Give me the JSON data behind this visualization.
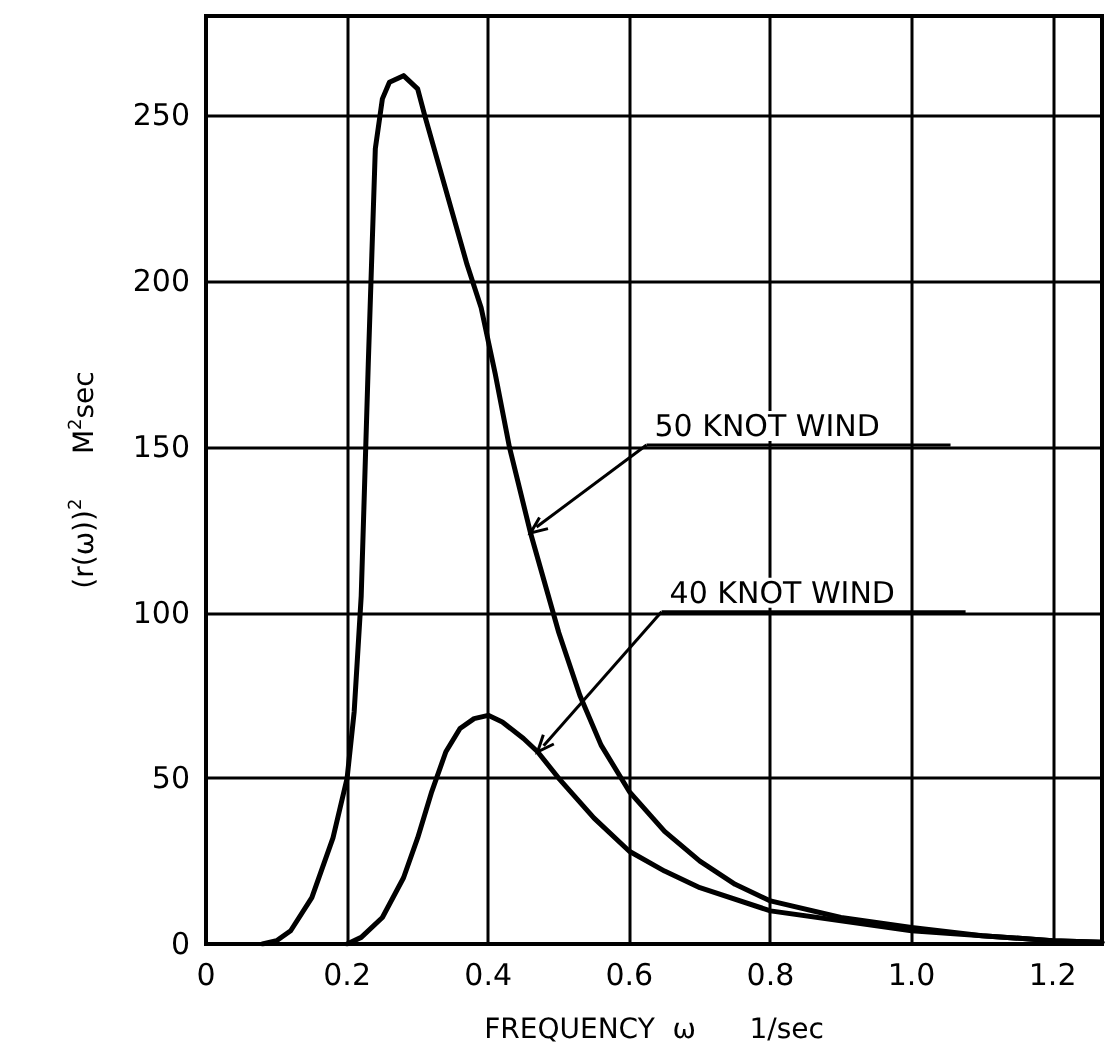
{
  "chart_data": {
    "type": "line",
    "xlabel": "FREQUENCY  ω      1/sec",
    "ylabel": "(r(ω))$^{2}$     M$^{2}$sec",
    "xlim": [
      0,
      1.27
    ],
    "ylim": [
      0,
      280
    ],
    "xticks": [
      0,
      0.2,
      0.4,
      0.6,
      0.8,
      {
        "value": 1,
        "label": "1.0"
      },
      1.2
    ],
    "yticks": [
      0,
      50,
      100,
      150,
      200,
      250
    ],
    "grid": true,
    "marker": "none",
    "line_style": "solid",
    "series": [
      {
        "color": "#000000",
        "x": [
          0.08,
          0.1,
          0.12,
          0.15,
          0.18,
          0.2,
          0.21,
          0.22,
          0.23,
          0.24,
          0.25,
          0.26,
          0.28,
          0.3,
          0.31,
          0.33,
          0.35,
          0.37,
          0.39,
          0.41,
          0.43,
          0.46,
          0.5,
          0.53,
          0.56,
          0.6,
          0.65,
          0.7,
          0.75,
          0.8,
          0.9,
          1.0,
          1.1,
          1.2,
          1.27
        ],
        "values": [
          0,
          1,
          4,
          14,
          32,
          50,
          70,
          105,
          175,
          240,
          255,
          260,
          262,
          258,
          250,
          235,
          220,
          205,
          192,
          172,
          150,
          124,
          94,
          75,
          60,
          46,
          34,
          25,
          18,
          13,
          8,
          5,
          2.5,
          1,
          0.5
        ]
      },
      {
        "color": "#000000",
        "x": [
          0.2,
          0.22,
          0.25,
          0.28,
          0.3,
          0.32,
          0.34,
          0.36,
          0.38,
          0.4,
          0.42,
          0.45,
          0.47,
          0.5,
          0.55,
          0.6,
          0.65,
          0.7,
          0.8,
          0.9,
          1.0,
          1.1,
          1.2,
          1.27
        ],
        "values": [
          0,
          2,
          8,
          20,
          32,
          46,
          58,
          65,
          68,
          69,
          67,
          62,
          58,
          50,
          38,
          28,
          22,
          17,
          10,
          7,
          4,
          2.5,
          1,
          0.5
        ]
      }
    ],
    "annotations": [
      {
        "text": "50 KNOT WIND",
        "x": 0.46,
        "y": 124
      },
      {
        "text": "40 KNOT WIND",
        "x": 0.47,
        "y": 58
      }
    ]
  }
}
